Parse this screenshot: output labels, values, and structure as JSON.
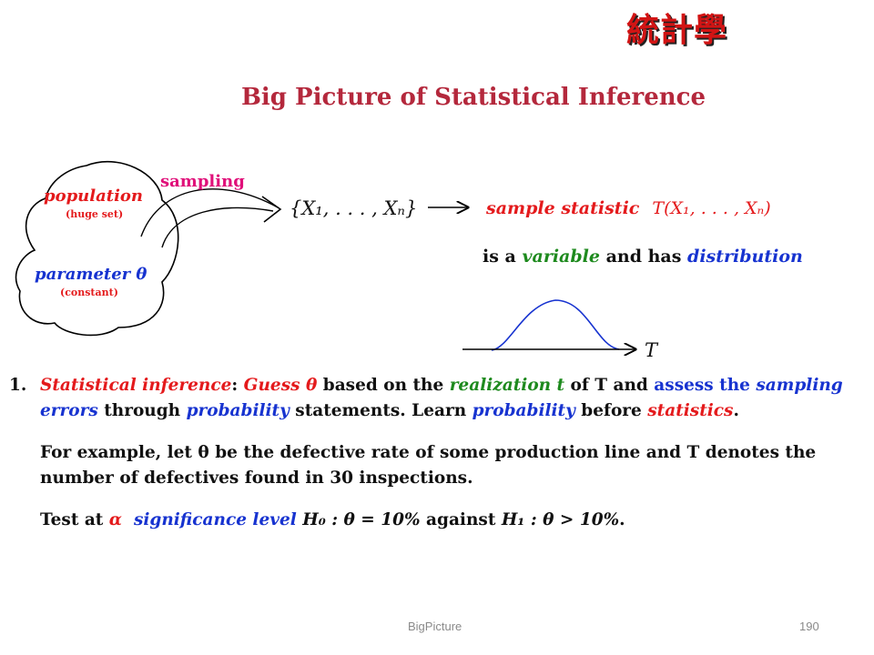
{
  "header": {
    "logo_text": "統計學",
    "title": "Big Picture of Statistical Inference"
  },
  "diagram": {
    "population_label": "population",
    "population_note": "(huge set)",
    "parameter_label": "parameter θ",
    "parameter_note": "(constant)",
    "sampling_label": "sampling",
    "sample_set": "{X₁, . . . , Xₙ}",
    "statistic_prefix": "sample statistic",
    "statistic_formula": "T(X₁, . . . , Xₙ)",
    "variable_line": {
      "part1": "is a ",
      "variable": "variable",
      "part2": " and has ",
      "distribution": "distribution"
    },
    "axis_label": "T"
  },
  "content": {
    "item_number": "1.",
    "line1": {
      "statistical_inference": "Statistical inference",
      "colon": ":  ",
      "guess": "Guess θ",
      "based_on": " based on the ",
      "realization": "realization t",
      "of_T_and": " of T and ",
      "assess_the": "assess the ",
      "sampling": "sampling",
      "errors": "errors",
      "through": " through ",
      "probability": "probability",
      "statements": " statements.  Learn ",
      "probability2": "probability",
      "before": " before ",
      "statistics": "statistics",
      "period": "."
    },
    "example": "For example, let θ be the defective rate of some production line and T denotes the number of defectives found in 30 inspections.",
    "test": {
      "prefix": "Test at ",
      "alpha": "α",
      "significance": "significance level",
      "h0": "H₀ : θ = 10%",
      "against": " against ",
      "h1": "H₁ : θ > 10%",
      "period": "."
    }
  },
  "footer": {
    "label": "BigPicture",
    "page": "190"
  },
  "colors": {
    "title": "#b4283c",
    "red": "#e41a1c",
    "magenta": "#e0107a",
    "blue": "#1733d0",
    "green": "#1e8a1e"
  }
}
